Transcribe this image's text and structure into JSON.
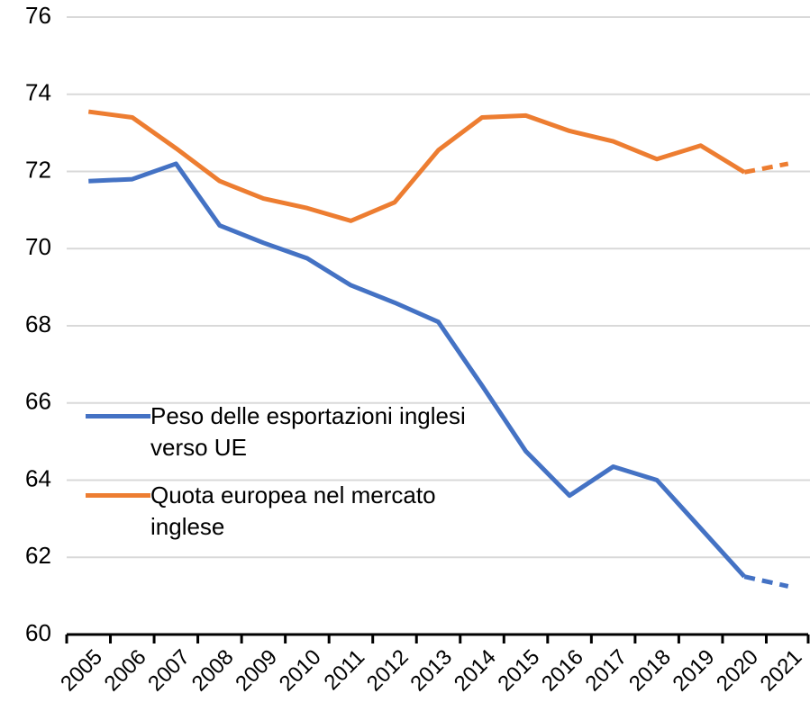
{
  "chart_data": {
    "type": "line",
    "categories": [
      "2005",
      "2006",
      "2007",
      "2008",
      "2009",
      "2010",
      "2011",
      "2012",
      "2013",
      "2014",
      "2015",
      "2016",
      "2017",
      "2018",
      "2019",
      "2020",
      "2021"
    ],
    "series": [
      {
        "name": "Peso delle esportazioni inglesi verso UE",
        "color": "#4472c4",
        "values": [
          71.75,
          71.8,
          72.2,
          70.6,
          70.15,
          69.75,
          69.05,
          68.6,
          68.1,
          66.45,
          64.75,
          63.6,
          64.35,
          64.0,
          62.75,
          61.5,
          61.25
        ]
      },
      {
        "name": "Quota europea nel mercato inglese",
        "color": "#ed7d31",
        "values": [
          73.55,
          73.4,
          72.6,
          71.75,
          71.3,
          71.05,
          70.72,
          71.2,
          72.55,
          73.4,
          73.45,
          73.05,
          72.78,
          72.32,
          72.67,
          71.98,
          72.2
        ]
      }
    ],
    "dashed_from_index": 15,
    "ylim": [
      60,
      76
    ],
    "yticks": [
      60,
      62,
      64,
      66,
      68,
      70,
      72,
      74,
      76
    ],
    "grid": true,
    "legend": "left"
  }
}
